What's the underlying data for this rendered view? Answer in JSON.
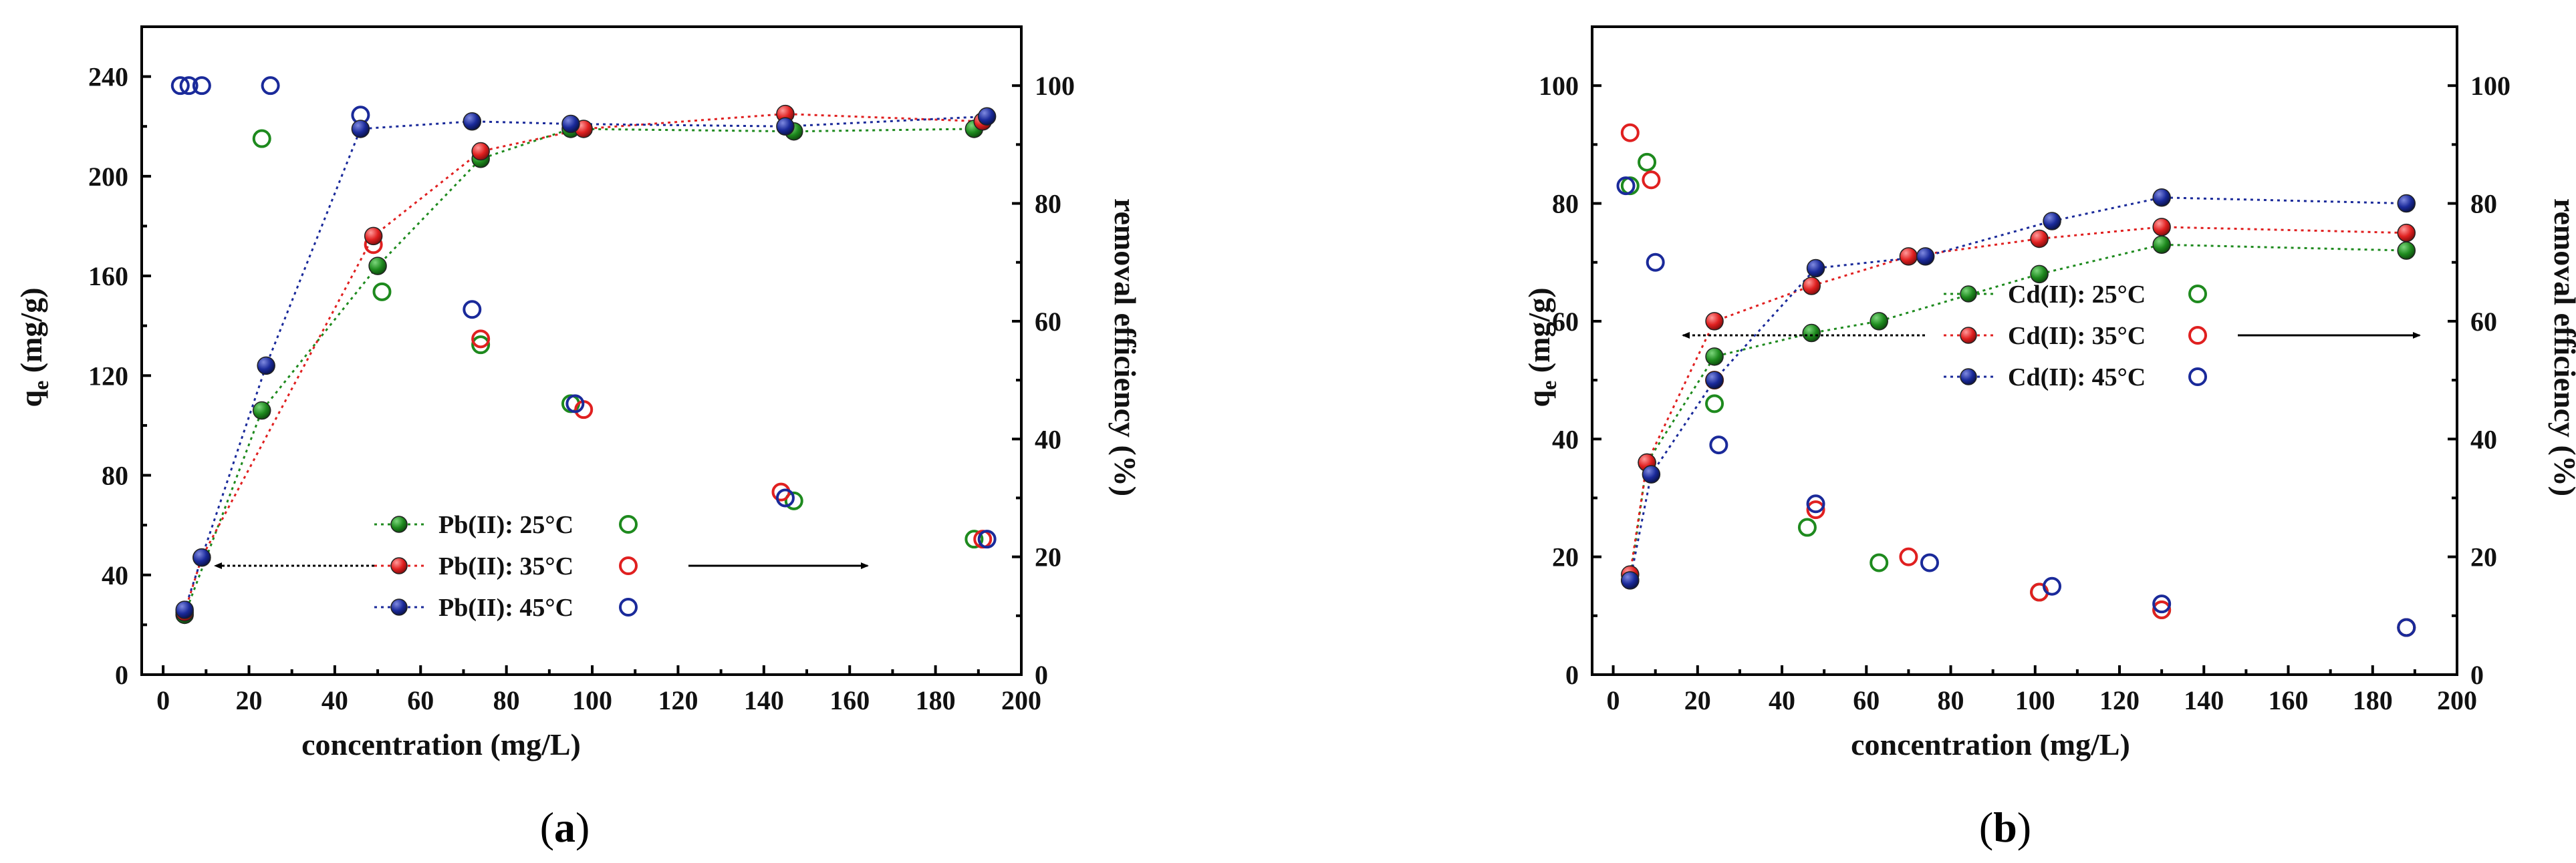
{
  "figure": {
    "panels": [
      {
        "id": "a",
        "label_open": "(",
        "label_letter": "a",
        "label_close": ")"
      },
      {
        "id": "b",
        "label_open": "(",
        "label_letter": "b",
        "label_close": ")"
      }
    ]
  },
  "chart_data": [
    {
      "type": "scatter",
      "panel": "a",
      "xlabel": "concentration (mg/L)",
      "ylabel_main": "q",
      "ylabel_sub": "e",
      "ylabel_rest": " (mg/g)",
      "y2label": "removal efficiency (%)",
      "xlim": [
        -5,
        200
      ],
      "ylim": [
        0,
        260
      ],
      "y2lim": [
        0,
        110
      ],
      "xticks": [
        0,
        20,
        40,
        60,
        80,
        100,
        120,
        140,
        160,
        180,
        200
      ],
      "yticks": [
        0,
        40,
        80,
        120,
        160,
        200,
        240
      ],
      "y2ticks": [
        0,
        20,
        40,
        60,
        80,
        100
      ],
      "legend_position": "center-bottom",
      "arrow_left_label": "",
      "arrow_right_label": "",
      "series": [
        {
          "name": "Pb(II): 25°C",
          "color": "#1e8a1e",
          "qe": {
            "x": [
              5,
              23,
              50,
              74,
              95,
              147,
              189
            ],
            "y": [
              24,
              106,
              164,
              207,
              219,
              218,
              219
            ]
          },
          "removal": {
            "x": [
              23,
              51,
              74,
              95,
              147,
              189
            ],
            "y": [
              91,
              65,
              56,
              46,
              29.5,
              23
            ]
          }
        },
        {
          "name": "Pb(II): 35°C",
          "color": "#e02020",
          "qe": {
            "x": [
              5,
              9,
              49,
              74,
              98,
              145,
              191
            ],
            "y": [
              25,
              47,
              176,
              210,
              219,
              225,
              222
            ]
          },
          "removal": {
            "x": [
              49,
              74,
              98,
              144,
              191
            ],
            "y": [
              73,
              57,
              45,
              31,
              23
            ]
          }
        },
        {
          "name": "Pb(II): 45°C",
          "color": "#1a2a9a",
          "qe": {
            "x": [
              5,
              9,
              24,
              46,
              72,
              95,
              145,
              192
            ],
            "y": [
              26,
              47,
              124,
              219,
              222,
              221,
              220,
              224
            ]
          },
          "removal": {
            "x": [
              4,
              6,
              9,
              25,
              46,
              72,
              96,
              145,
              192
            ],
            "y": [
              100,
              100,
              100,
              100,
              95,
              62,
              46,
              30,
              23
            ]
          }
        }
      ]
    },
    {
      "type": "scatter",
      "panel": "b",
      "xlabel": "concentration (mg/L)",
      "ylabel_main": "q",
      "ylabel_sub": "e",
      "ylabel_rest": " (mg/g)",
      "y2label": "removal efficiency (%)",
      "xlim": [
        -5,
        200
      ],
      "ylim": [
        0,
        110
      ],
      "y2lim": [
        0,
        110
      ],
      "xticks": [
        0,
        20,
        40,
        60,
        80,
        100,
        120,
        140,
        160,
        180,
        200
      ],
      "yticks": [
        0,
        20,
        40,
        60,
        80,
        100
      ],
      "y2ticks": [
        0,
        20,
        40,
        60,
        80,
        100
      ],
      "legend_position": "center-right",
      "series": [
        {
          "name": "Cd(II): 25°C",
          "color": "#1e8a1e",
          "qe": {
            "x": [
              4,
              8,
              24,
              47,
              63,
              101,
              130,
              188
            ],
            "y": [
              16,
              36,
              54,
              58,
              60,
              68,
              73,
              72
            ]
          },
          "removal": {
            "x": [
              4,
              8,
              24,
              46,
              63,
              101,
              130,
              188
            ],
            "y": [
              83,
              87,
              46,
              25,
              19,
              14,
              11,
              8
            ]
          }
        },
        {
          "name": "Cd(II): 35°C",
          "color": "#e02020",
          "qe": {
            "x": [
              4,
              8,
              24,
              47,
              70,
              101,
              130,
              188
            ],
            "y": [
              17,
              36,
              60,
              66,
              71,
              74,
              76,
              75
            ]
          },
          "removal": {
            "x": [
              4,
              9,
              24,
              48,
              70,
              101,
              130,
              188
            ],
            "y": [
              92,
              84,
              50,
              28,
              20,
              14,
              11,
              8
            ]
          }
        },
        {
          "name": "Cd(II): 45°C",
          "color": "#1a2a9a",
          "qe": {
            "x": [
              4,
              9,
              24,
              48,
              74,
              104,
              130,
              188
            ],
            "y": [
              16,
              34,
              50,
              69,
              71,
              77,
              81,
              80
            ]
          },
          "removal": {
            "x": [
              3,
              10,
              25,
              48,
              75,
              104,
              130,
              188
            ],
            "y": [
              83,
              70,
              39,
              29,
              19,
              15,
              12,
              8
            ]
          }
        }
      ]
    }
  ]
}
